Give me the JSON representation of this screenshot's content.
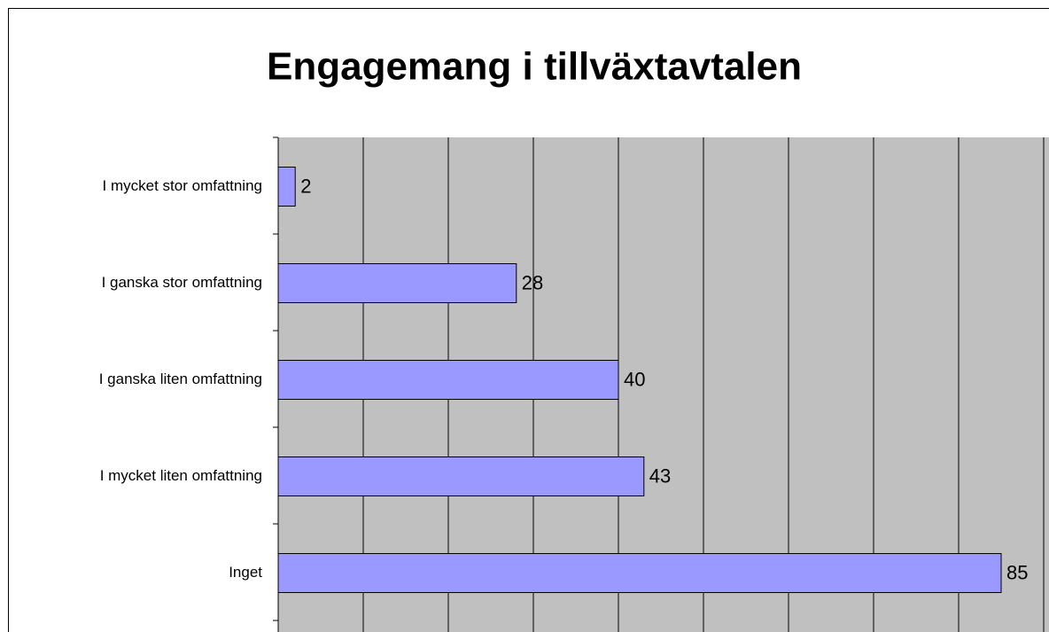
{
  "chart_data": {
    "type": "bar",
    "orientation": "horizontal",
    "title": "Engagemang i tillväxtavtalen",
    "categories": [
      "I mycket stor omfattning",
      "I ganska stor omfattning",
      "I ganska liten omfattning",
      "I mycket liten omfattning",
      "Inget"
    ],
    "values": [
      2,
      28,
      40,
      43,
      85
    ],
    "color": "#9999ff",
    "xlim": [
      0,
      90
    ],
    "xticks": [
      0,
      10,
      20,
      30,
      40,
      50,
      60,
      70,
      80,
      90
    ],
    "grid": true
  }
}
